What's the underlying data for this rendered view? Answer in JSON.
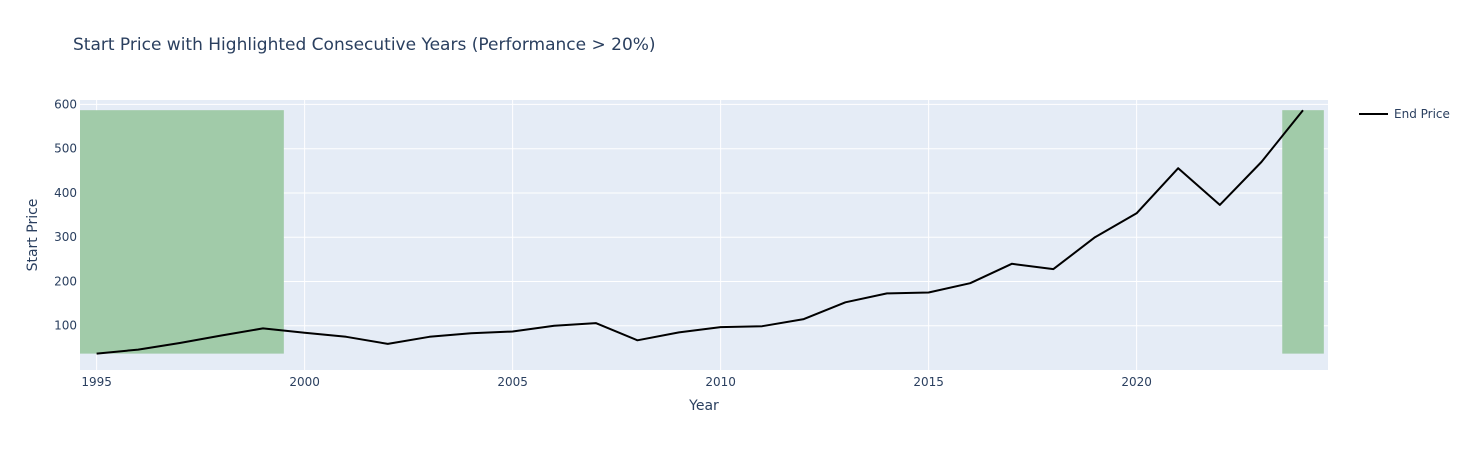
{
  "chart_data": {
    "type": "line",
    "title": "Start Price with Highlighted Consecutive Years (Performance > 20%)",
    "xlabel": "Year",
    "ylabel": "Start Price",
    "xlim": [
      1994.6,
      2024.6
    ],
    "ylim": [
      0,
      610
    ],
    "xticks": [
      1995,
      2000,
      2005,
      2010,
      2015,
      2020
    ],
    "yticks": [
      100,
      200,
      300,
      400,
      500,
      600
    ],
    "grid": true,
    "legend_position": "top-right",
    "plot_background": "#e5ecf6",
    "highlight_color": "#a1cba9",
    "highlight_regions": [
      {
        "x0": 1994.5,
        "x1": 1999.5,
        "y0": 37,
        "y1": 587
      },
      {
        "x0": 2023.5,
        "x1": 2024.5,
        "y0": 37,
        "y1": 587
      }
    ],
    "series": [
      {
        "name": "End Price",
        "color": "#000000",
        "x": [
          1995,
          1996,
          1997,
          1998,
          1999,
          2000,
          2001,
          2002,
          2003,
          2004,
          2005,
          2006,
          2007,
          2008,
          2009,
          2010,
          2011,
          2012,
          2013,
          2014,
          2015,
          2016,
          2017,
          2018,
          2019,
          2020,
          2021,
          2022,
          2023,
          2024
        ],
        "y": [
          37,
          46,
          61,
          78,
          94,
          84,
          75,
          59,
          75,
          83,
          87,
          100,
          106,
          67,
          85,
          97,
          99,
          115,
          153,
          173,
          175,
          196,
          240,
          228,
          300,
          354,
          456,
          373,
          470,
          587
        ]
      }
    ]
  }
}
